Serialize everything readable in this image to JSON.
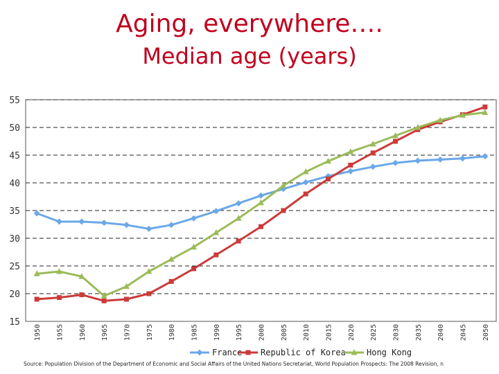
{
  "title": "Aging, everywhere….",
  "subtitle": "Median age (years)",
  "source": "Source: Population Division of the Department of Economic and Social Affairs of the United Nations Secretariat, World Population Prospects: The 2008 Revision, n",
  "chart_data": {
    "type": "line",
    "x": [
      1950,
      1955,
      1960,
      1965,
      1970,
      1975,
      1980,
      1985,
      1990,
      1995,
      2000,
      2005,
      2010,
      2015,
      2020,
      2025,
      2030,
      2035,
      2040,
      2045,
      2050
    ],
    "ylim": [
      15,
      55
    ],
    "yticks": [
      15,
      20,
      25,
      30,
      35,
      40,
      45,
      50,
      55
    ],
    "grid": true,
    "legend_position": "bottom",
    "series": [
      {
        "name": "France",
        "color": "#6aa8e8",
        "marker": "diamond",
        "values": [
          34.5,
          33.0,
          33.0,
          32.8,
          32.4,
          31.7,
          32.4,
          33.6,
          34.9,
          36.3,
          37.7,
          38.9,
          40.1,
          41.2,
          42.1,
          42.9,
          43.6,
          44.0,
          44.2,
          44.4,
          44.8
        ]
      },
      {
        "name": "Republic of Korea",
        "color": "#cc3a3a",
        "marker": "square",
        "values": [
          19.0,
          19.3,
          19.8,
          18.7,
          19.0,
          20.0,
          22.2,
          24.5,
          27.0,
          29.5,
          32.1,
          35.0,
          38.0,
          40.7,
          43.2,
          45.4,
          47.5,
          49.6,
          51.0,
          52.3,
          53.7
        ]
      },
      {
        "name": "Hong Kong",
        "color": "#9bbb59",
        "marker": "triangle",
        "values": [
          23.6,
          24.0,
          23.1,
          19.6,
          21.3,
          24.0,
          26.2,
          28.4,
          31.0,
          33.6,
          36.4,
          39.5,
          42.0,
          43.9,
          45.6,
          47.0,
          48.5,
          50.0,
          51.3,
          52.2,
          52.7
        ]
      }
    ]
  }
}
